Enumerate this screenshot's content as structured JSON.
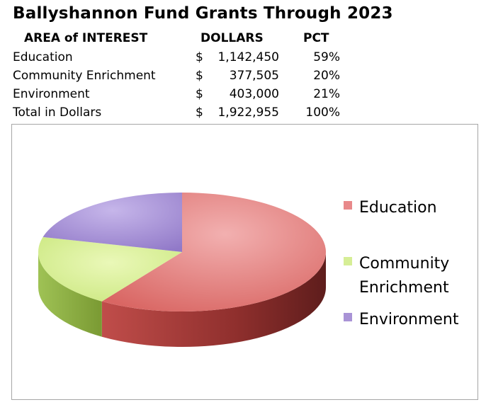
{
  "title": "Ballyshannon Fund Grants Through 2023",
  "table": {
    "headers": [
      "AREA of INTEREST",
      "DOLLARS",
      "PCT"
    ],
    "rows": [
      {
        "area": "Education",
        "dollar_sign": "$",
        "amount": "1,142,450",
        "pct": "59%"
      },
      {
        "area": "Community Enrichment",
        "dollar_sign": "$",
        "amount": "377,505",
        "pct": "20%"
      },
      {
        "area": "Environment",
        "dollar_sign": "$",
        "amount": "403,000",
        "pct": "21%"
      },
      {
        "area": "Total in Dollars",
        "dollar_sign": "$",
        "amount": "1,922,955",
        "pct": "100%"
      }
    ]
  },
  "chart_data": {
    "type": "pie",
    "style": "3d",
    "legend_position": "right",
    "slices": [
      {
        "label": "Education",
        "value": 1142450,
        "pct": 59,
        "color": "#e8898a",
        "side_color": "#a83a38"
      },
      {
        "label": "Community Enrichment",
        "value": 377505,
        "pct": 20,
        "color": "#d6ee96",
        "side_color": "#8cad3c"
      },
      {
        "label": "Environment",
        "value": 403000,
        "pct": 21,
        "color": "#a993d6",
        "side_color": "#6d55a0"
      }
    ],
    "legend": [
      "Education",
      "Community\nEnrichment",
      "Environment"
    ]
  }
}
